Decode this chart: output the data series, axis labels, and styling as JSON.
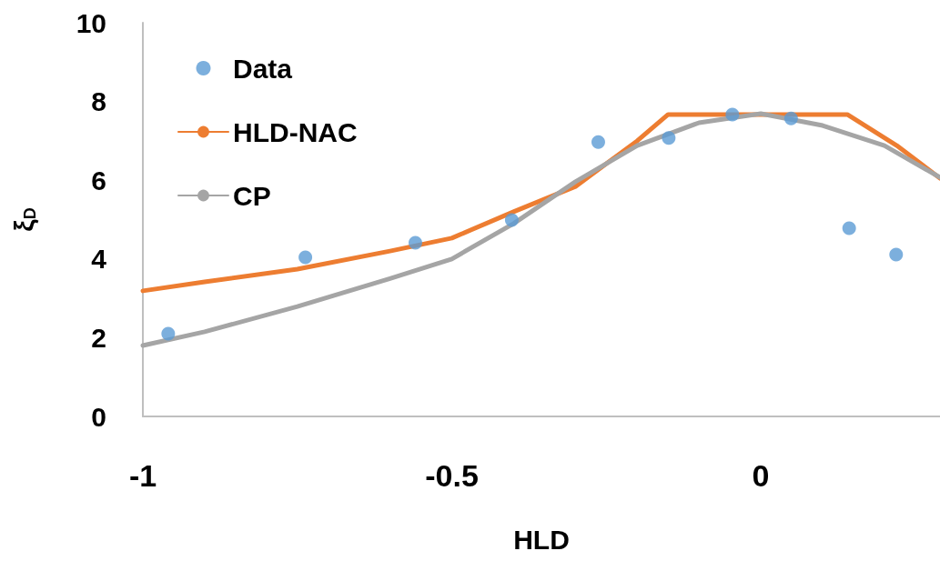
{
  "chart_data": {
    "type": "line",
    "xlabel": "HLD",
    "ylabel": "ξ$_{D}$",
    "xlim": [
      -1,
      0.29
    ],
    "xticks": [
      -1,
      -0.5,
      0
    ],
    "ylim": [
      0,
      10
    ],
    "yticks": [
      0,
      2,
      4,
      6,
      8,
      10
    ],
    "grid": false,
    "legend": "top left",
    "series": [
      {
        "name": "Data",
        "type": "scatter",
        "marker": "circle",
        "color": "#5b9bd5",
        "x": [
          -0.959,
          -0.737,
          -0.559,
          -0.403,
          -0.263,
          -0.149,
          -0.046,
          0.049,
          0.143,
          0.219
        ],
        "values": [
          2.1,
          4.04,
          4.41,
          4.99,
          6.97,
          7.07,
          7.67,
          7.57,
          4.78,
          4.11
        ]
      },
      {
        "name": "HLD-NAC",
        "type": "line",
        "marker": "none",
        "color": "#ed7d31",
        "x": [
          -1,
          -0.9,
          -0.75,
          -0.6,
          -0.5,
          -0.4,
          -0.3,
          -0.25,
          -0.2,
          -0.15,
          0,
          0.14,
          0.22,
          0.29
        ],
        "values": [
          3.19,
          3.42,
          3.74,
          4.2,
          4.53,
          5.2,
          5.84,
          6.42,
          7.0,
          7.67,
          7.67,
          7.67,
          6.88,
          6.05
        ]
      },
      {
        "name": "CP",
        "type": "line",
        "marker": "none",
        "color": "#a5a5a5",
        "x": [
          -1,
          -0.9,
          -0.75,
          -0.6,
          -0.5,
          -0.4,
          -0.3,
          -0.2,
          -0.1,
          0,
          0.1,
          0.2,
          0.29
        ],
        "values": [
          1.8,
          2.15,
          2.79,
          3.5,
          4.0,
          4.9,
          5.96,
          6.88,
          7.46,
          7.69,
          7.39,
          6.88,
          6.07
        ]
      }
    ]
  }
}
